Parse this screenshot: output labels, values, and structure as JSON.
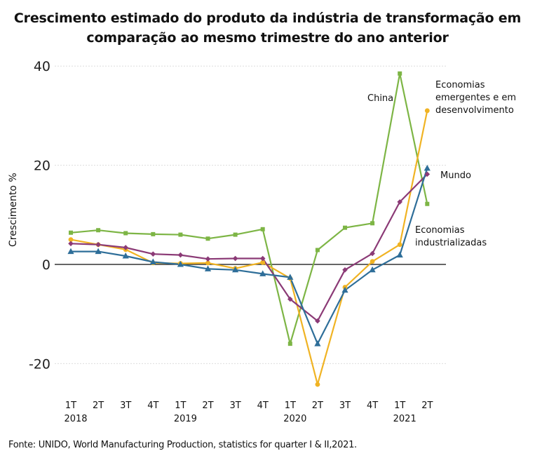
{
  "chart_data": {
    "type": "line",
    "title": "Crescimento estimado do produto da indústria de transformação em comparação ao mesmo trimestre do ano anterior",
    "title_lines": [
      "Crescimento estimado do produto da indústria de transformação em",
      "comparação ao mesmo trimestre do ano anterior"
    ],
    "xlabel": "",
    "ylabel": "Crescimento %",
    "ylim": [
      -27,
      42
    ],
    "yticks": [
      40,
      20,
      0,
      -20
    ],
    "ytick_labels": [
      "40",
      "20",
      "0",
      "-20"
    ],
    "grid": true,
    "categories": [
      "1T",
      "2T",
      "3T",
      "4T",
      "1T",
      "2T",
      "3T",
      "4T",
      "1T",
      "2T",
      "3T",
      "4T",
      "1T",
      "2T"
    ],
    "year_labels": [
      {
        "label": "2018",
        "category_index": 0
      },
      {
        "label": "2019",
        "category_index": 4
      },
      {
        "label": "2020",
        "category_index": 8
      },
      {
        "label": "2021",
        "category_index": 12
      }
    ],
    "series": [
      {
        "name": "China",
        "color": "#7db545",
        "marker": "square",
        "values": [
          6.4,
          6.9,
          6.3,
          6.1,
          6.0,
          5.2,
          6.0,
          7.1,
          -16.0,
          2.9,
          7.4,
          8.3,
          38.5,
          12.2
        ]
      },
      {
        "name": "Economias emergentes e em desenvolvimento",
        "color": "#f0b323",
        "marker": "circle",
        "values": [
          5.0,
          4.0,
          3.0,
          0.3,
          0.2,
          0.3,
          -0.8,
          0.4,
          -2.8,
          -24.2,
          -4.6,
          0.6,
          4.0,
          31.0
        ]
      },
      {
        "name": "Mundo",
        "color": "#8b3a76",
        "marker": "diamond",
        "values": [
          4.2,
          4.0,
          3.4,
          2.1,
          1.9,
          1.1,
          1.2,
          1.2,
          -7.0,
          -11.4,
          -1.1,
          2.2,
          12.6,
          18.2
        ]
      },
      {
        "name": "Economias industrializadas",
        "color": "#2e6e99",
        "marker": "triangle",
        "values": [
          2.6,
          2.6,
          1.7,
          0.5,
          0.0,
          -0.9,
          -1.1,
          -1.9,
          -2.6,
          -16.0,
          -5.2,
          -1.1,
          1.9,
          19.4
        ]
      }
    ],
    "series_label_lines": [
      [
        "China"
      ],
      [
        "Economias",
        "emergentes e em",
        "desenvolvimento"
      ],
      [
        "Mundo"
      ],
      [
        "Economias",
        "industrializadas"
      ]
    ],
    "zero_line_color": "#333333",
    "grid_color": "#dddddd"
  },
  "source": "Fonte: UNIDO, World Manufacturing Production, statistics for quarter I & II,2021."
}
